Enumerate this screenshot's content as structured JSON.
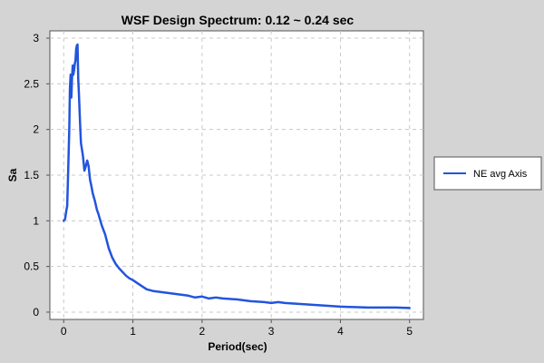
{
  "chart_data": {
    "type": "line",
    "title": "WSF Design Spectrum: 0.12 ~ 0.24 sec",
    "xlabel": "Period(sec)",
    "ylabel": "Sa",
    "xlim": [
      -0.2,
      5.2
    ],
    "ylim": [
      -0.08,
      3.08
    ],
    "xticks": [
      0,
      1,
      2,
      3,
      4,
      5
    ],
    "yticks": [
      0,
      0.5,
      1,
      1.5,
      2,
      2.5,
      3
    ],
    "xtick_labels": [
      "0",
      "1",
      "2",
      "3",
      "4",
      "5"
    ],
    "ytick_labels": [
      "0",
      "0.5",
      "1",
      "1.5",
      "2",
      "2.5",
      "3"
    ],
    "grid": true,
    "legend_position": "right",
    "series": [
      {
        "name": "NE avg Axis",
        "color": "#2255dd",
        "x": [
          0.0,
          0.02,
          0.04,
          0.05,
          0.06,
          0.07,
          0.08,
          0.09,
          0.1,
          0.11,
          0.12,
          0.13,
          0.14,
          0.15,
          0.16,
          0.17,
          0.18,
          0.19,
          0.2,
          0.21,
          0.22,
          0.23,
          0.24,
          0.25,
          0.27,
          0.28,
          0.3,
          0.32,
          0.34,
          0.36,
          0.38,
          0.4,
          0.42,
          0.45,
          0.48,
          0.5,
          0.55,
          0.6,
          0.65,
          0.7,
          0.75,
          0.8,
          0.85,
          0.9,
          0.95,
          1.0,
          1.1,
          1.2,
          1.3,
          1.4,
          1.5,
          1.6,
          1.7,
          1.8,
          1.9,
          2.0,
          2.1,
          2.2,
          2.3,
          2.5,
          2.7,
          2.9,
          3.0,
          3.1,
          3.2,
          3.4,
          3.6,
          3.8,
          4.0,
          4.2,
          4.4,
          4.6,
          4.8,
          5.0
        ],
        "y": [
          1.0,
          1.02,
          1.12,
          1.16,
          1.4,
          1.7,
          2.0,
          2.45,
          2.6,
          2.35,
          2.55,
          2.7,
          2.6,
          2.65,
          2.72,
          2.75,
          2.88,
          2.92,
          2.93,
          2.55,
          2.4,
          2.2,
          2.0,
          1.85,
          1.75,
          1.7,
          1.55,
          1.6,
          1.66,
          1.6,
          1.45,
          1.38,
          1.3,
          1.22,
          1.12,
          1.08,
          0.95,
          0.85,
          0.7,
          0.6,
          0.53,
          0.48,
          0.44,
          0.4,
          0.37,
          0.35,
          0.3,
          0.25,
          0.23,
          0.22,
          0.21,
          0.2,
          0.19,
          0.18,
          0.16,
          0.17,
          0.15,
          0.16,
          0.15,
          0.14,
          0.12,
          0.11,
          0.1,
          0.11,
          0.1,
          0.09,
          0.08,
          0.07,
          0.06,
          0.055,
          0.05,
          0.05,
          0.05,
          0.045
        ]
      }
    ]
  }
}
